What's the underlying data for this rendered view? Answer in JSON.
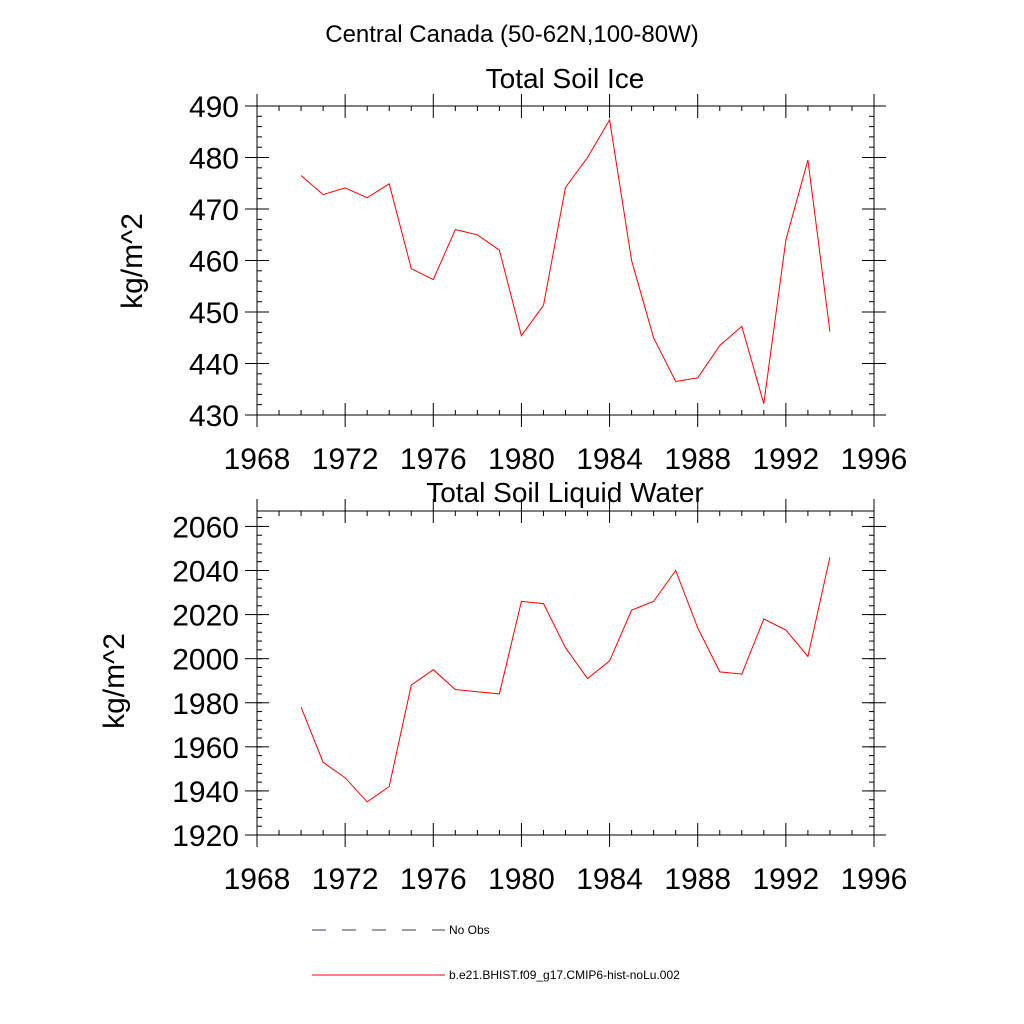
{
  "figure": {
    "suptitle": "Central Canada (50-62N,100-80W)"
  },
  "colors": {
    "model_line": "#ff0000",
    "obs_line": "#3a3a6e",
    "axes": "#000000"
  },
  "legend": {
    "placement": "bottom-center",
    "entries": [
      {
        "label": "No Obs",
        "style": "dashed",
        "color": "#3a3a6e"
      },
      {
        "label": "b.e21.BHIST.f09_g17.CMIP6-hist-noLu.002",
        "style": "solid",
        "color": "#ff0000"
      }
    ]
  },
  "chart_data": [
    {
      "type": "line",
      "title": "Total Soil Ice",
      "xlabel": "",
      "ylabel": "kg/m^2",
      "xlim": [
        1968,
        1996
      ],
      "ylim": [
        430,
        490
      ],
      "xticks": [
        1968,
        1972,
        1976,
        1980,
        1984,
        1988,
        1992,
        1996
      ],
      "yticks": [
        430,
        440,
        450,
        460,
        470,
        480,
        490
      ],
      "grid": false,
      "series": [
        {
          "name": "b.e21.BHIST.f09_g17.CMIP6-hist-noLu.002",
          "color": "#ff0000",
          "x": [
            1970,
            1971,
            1972,
            1973,
            1974,
            1975,
            1976,
            1977,
            1978,
            1979,
            1980,
            1981,
            1982,
            1983,
            1984,
            1985,
            1986,
            1987,
            1988,
            1989,
            1990,
            1991,
            1992,
            1993,
            1994
          ],
          "values": [
            476.5,
            472.8,
            474.1,
            472.2,
            474.9,
            458.4,
            456.3,
            466.0,
            465.0,
            462.0,
            445.4,
            451.3,
            474.2,
            480.0,
            487.3,
            460.0,
            445.0,
            436.5,
            437.2,
            443.5,
            447.2,
            432.2,
            464.0,
            479.5,
            446.2
          ]
        }
      ]
    },
    {
      "type": "line",
      "title": "Total Soil Liquid Water",
      "xlabel": "",
      "ylabel": "kg/m^2",
      "xlim": [
        1968,
        1996
      ],
      "ylim": [
        1920,
        2067
      ],
      "xticks": [
        1968,
        1972,
        1976,
        1980,
        1984,
        1988,
        1992,
        1996
      ],
      "yticks": [
        1920,
        1940,
        1960,
        1980,
        2000,
        2020,
        2040,
        2060
      ],
      "grid": false,
      "series": [
        {
          "name": "b.e21.BHIST.f09_g17.CMIP6-hist-noLu.002",
          "color": "#ff0000",
          "x": [
            1970,
            1971,
            1972,
            1973,
            1974,
            1975,
            1976,
            1977,
            1978,
            1979,
            1980,
            1981,
            1982,
            1983,
            1984,
            1985,
            1986,
            1987,
            1988,
            1989,
            1990,
            1991,
            1992,
            1993,
            1994
          ],
          "values": [
            1978,
            1953,
            1946,
            1935,
            1942,
            1988,
            1995,
            1986,
            1985,
            1984,
            2026,
            2025,
            2005,
            1991,
            1999,
            2022,
            2026,
            2040,
            2014,
            1994,
            1993,
            2018,
            2013,
            2001,
            2046
          ]
        }
      ]
    }
  ]
}
